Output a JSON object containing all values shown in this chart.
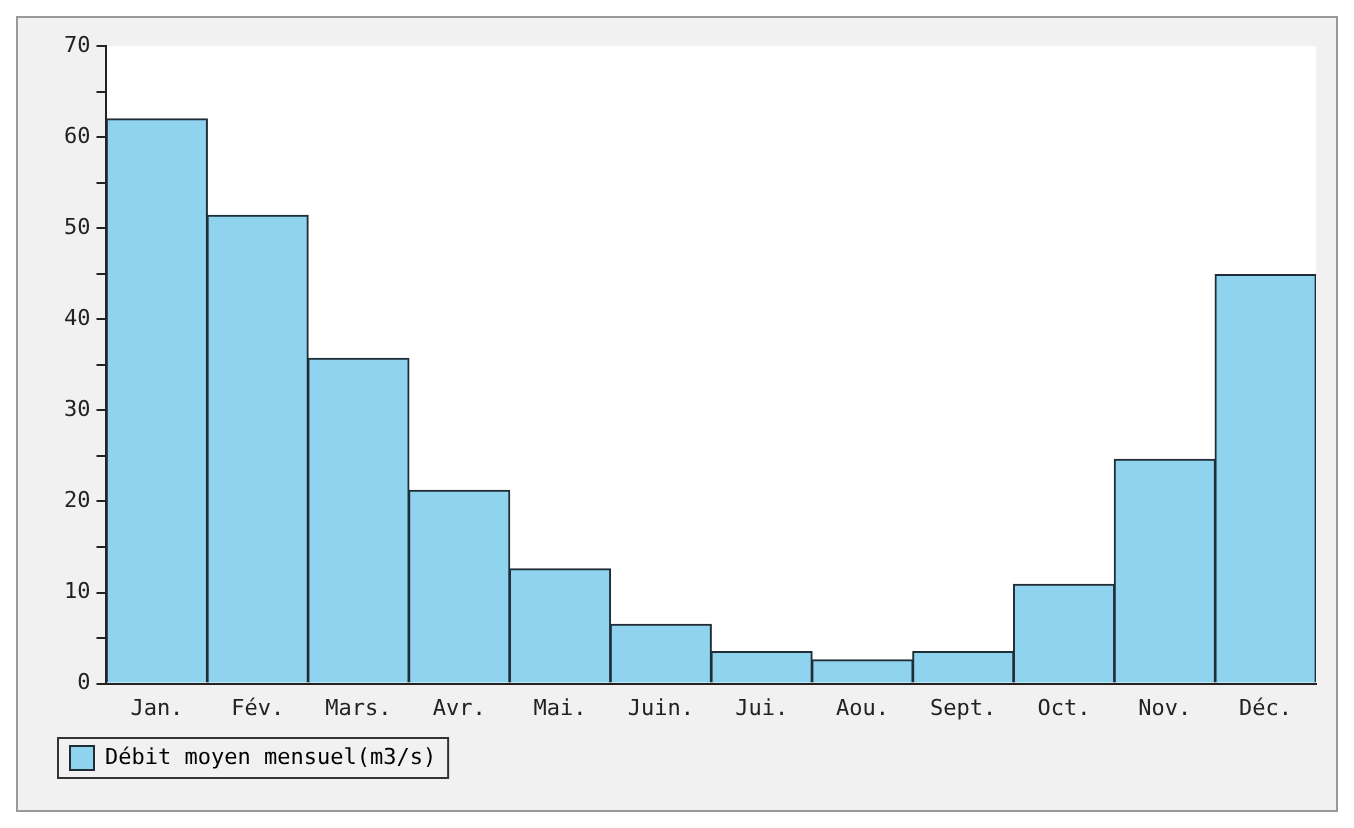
{
  "chart_data": {
    "type": "bar",
    "categories": [
      "Jan.",
      "Fév.",
      "Mars.",
      "Avr.",
      "Mai.",
      "Juin.",
      "Jui.",
      "Aou.",
      "Sept.",
      "Oct.",
      "Nov.",
      "Déc."
    ],
    "series": [
      {
        "name": "Débit moyen mensuel(m3/s)",
        "color": "#8fd3ef",
        "values": [
          62,
          51.4,
          35.7,
          21.2,
          12.6,
          6.5,
          3.5,
          2.6,
          3.5,
          10.9,
          24.6,
          44.9
        ]
      }
    ],
    "ylim": [
      0,
      70
    ],
    "yticks": [
      0,
      {
        "value": 5,
        "label": null
      },
      10,
      {
        "value": 15,
        "label": null
      },
      20,
      {
        "value": 25,
        "label": null
      },
      30,
      {
        "value": 35,
        "label": null
      },
      40,
      {
        "value": 45,
        "label": null
      },
      50,
      {
        "value": 55,
        "label": null
      },
      60,
      {
        "value": 65,
        "label": null
      },
      70
    ],
    "grid": false,
    "legend": "bottom"
  }
}
